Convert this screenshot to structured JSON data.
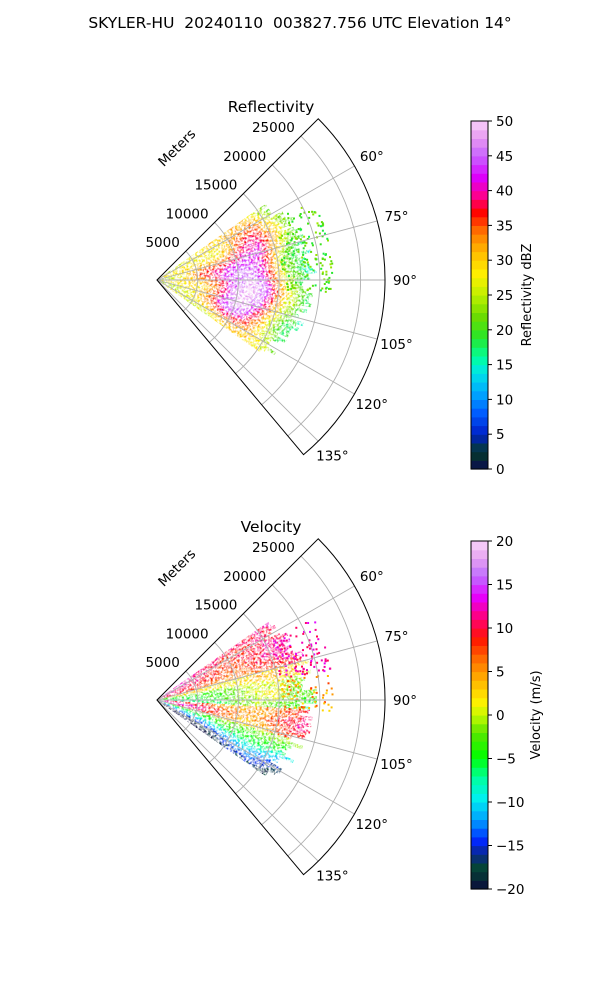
{
  "figure_title": "SKYLER-HU  20240110  003827.756 UTC Elevation 14°",
  "chart_data": [
    {
      "type": "heatmap",
      "projection": "polar-sector",
      "title": "Reflectivity",
      "radial_axis_label": "Meters",
      "radial_ticks": [
        5000,
        10000,
        15000,
        20000,
        25000
      ],
      "radial_tick_labels": [
        "5000",
        "10000",
        "15000",
        "20000",
        "25000"
      ],
      "rlim": [
        0,
        28000
      ],
      "angle_ticks": [
        60,
        75,
        90,
        105,
        120,
        135
      ],
      "angle_tick_labels": [
        "60°",
        "75°",
        "90°",
        "105°",
        "120°",
        "135°"
      ],
      "angle_range": [
        45,
        140
      ],
      "grid": true,
      "colorbar": {
        "label": "Reflectivity dBZ",
        "range": [
          0,
          50
        ],
        "ticks": [
          0,
          5,
          10,
          15,
          20,
          25,
          30,
          35,
          40,
          45,
          50
        ],
        "tick_labels": [
          "0",
          "5",
          "10",
          "15",
          "20",
          "25",
          "30",
          "35",
          "40",
          "45",
          "50"
        ]
      },
      "data_extent": {
        "azimuth_range": [
          55,
          125
        ],
        "max_range_m": 18000
      },
      "features": [
        {
          "azimuth": 72,
          "range_m": 12000,
          "value": 38
        },
        {
          "azimuth": 95,
          "range_m": 12000,
          "value": 36
        },
        {
          "azimuth": 104,
          "range_m": 10000,
          "value": 42
        },
        {
          "azimuth": 82,
          "range_m": 6000,
          "value": 33
        }
      ]
    },
    {
      "type": "heatmap",
      "projection": "polar-sector",
      "title": "Velocity",
      "radial_axis_label": "Meters",
      "radial_ticks": [
        5000,
        10000,
        15000,
        20000,
        25000
      ],
      "radial_tick_labels": [
        "5000",
        "10000",
        "15000",
        "20000",
        "25000"
      ],
      "rlim": [
        0,
        28000
      ],
      "angle_ticks": [
        60,
        75,
        90,
        105,
        120,
        135
      ],
      "angle_tick_labels": [
        "60°",
        "75°",
        "90°",
        "105°",
        "120°",
        "135°"
      ],
      "angle_range": [
        45,
        140
      ],
      "grid": true,
      "colorbar": {
        "label": "Velocity (m/s)",
        "range": [
          -20,
          20
        ],
        "ticks": [
          -20,
          -15,
          -10,
          -5,
          0,
          5,
          10,
          15,
          20
        ],
        "tick_labels": [
          "−20",
          "−15",
          "−10",
          "−5",
          "0",
          "5",
          "10",
          "15",
          "20"
        ]
      },
      "data_extent": {
        "azimuth_range": [
          55,
          125
        ],
        "max_range_m": 18000
      },
      "features": [
        {
          "azimuth": 65,
          "range_m": 13000,
          "value": 12
        },
        {
          "azimuth": 85,
          "range_m": 10000,
          "value": -8
        },
        {
          "azimuth": 101,
          "range_m": 12000,
          "value": 16
        },
        {
          "azimuth": 115,
          "range_m": 12000,
          "value": -13
        }
      ]
    }
  ]
}
